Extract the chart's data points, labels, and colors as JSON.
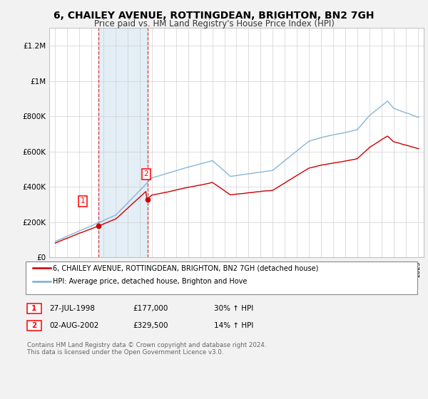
{
  "title": "6, CHAILEY AVENUE, ROTTINGDEAN, BRIGHTON, BN2 7GH",
  "subtitle": "Price paid vs. HM Land Registry's House Price Index (HPI)",
  "ylim": [
    0,
    1300000
  ],
  "yticks": [
    0,
    200000,
    400000,
    600000,
    800000,
    1000000,
    1200000
  ],
  "ytick_labels": [
    "£0",
    "£200K",
    "£400K",
    "£600K",
    "£800K",
    "£1M",
    "£1.2M"
  ],
  "plot_bg_color": "#ffffff",
  "fig_bg_color": "#f2f2f2",
  "red_line_color": "#cc0000",
  "blue_line_color": "#7aaed6",
  "purchase1_x": 1998.58,
  "purchase1_price": 177000,
  "purchase1_date": "27-JUL-1998",
  "purchase1_label": "30% ↑ HPI",
  "purchase2_x": 2002.62,
  "purchase2_price": 329500,
  "purchase2_date": "02-AUG-2002",
  "purchase2_label": "14% ↑ HPI",
  "legend1": "6, CHAILEY AVENUE, ROTTINGDEAN, BRIGHTON, BN2 7GH (detached house)",
  "legend2": "HPI: Average price, detached house, Brighton and Hove",
  "footer": "Contains HM Land Registry data © Crown copyright and database right 2024.\nThis data is licensed under the Open Government Licence v3.0.",
  "xlim_left": 1994.5,
  "xlim_right": 2025.5
}
